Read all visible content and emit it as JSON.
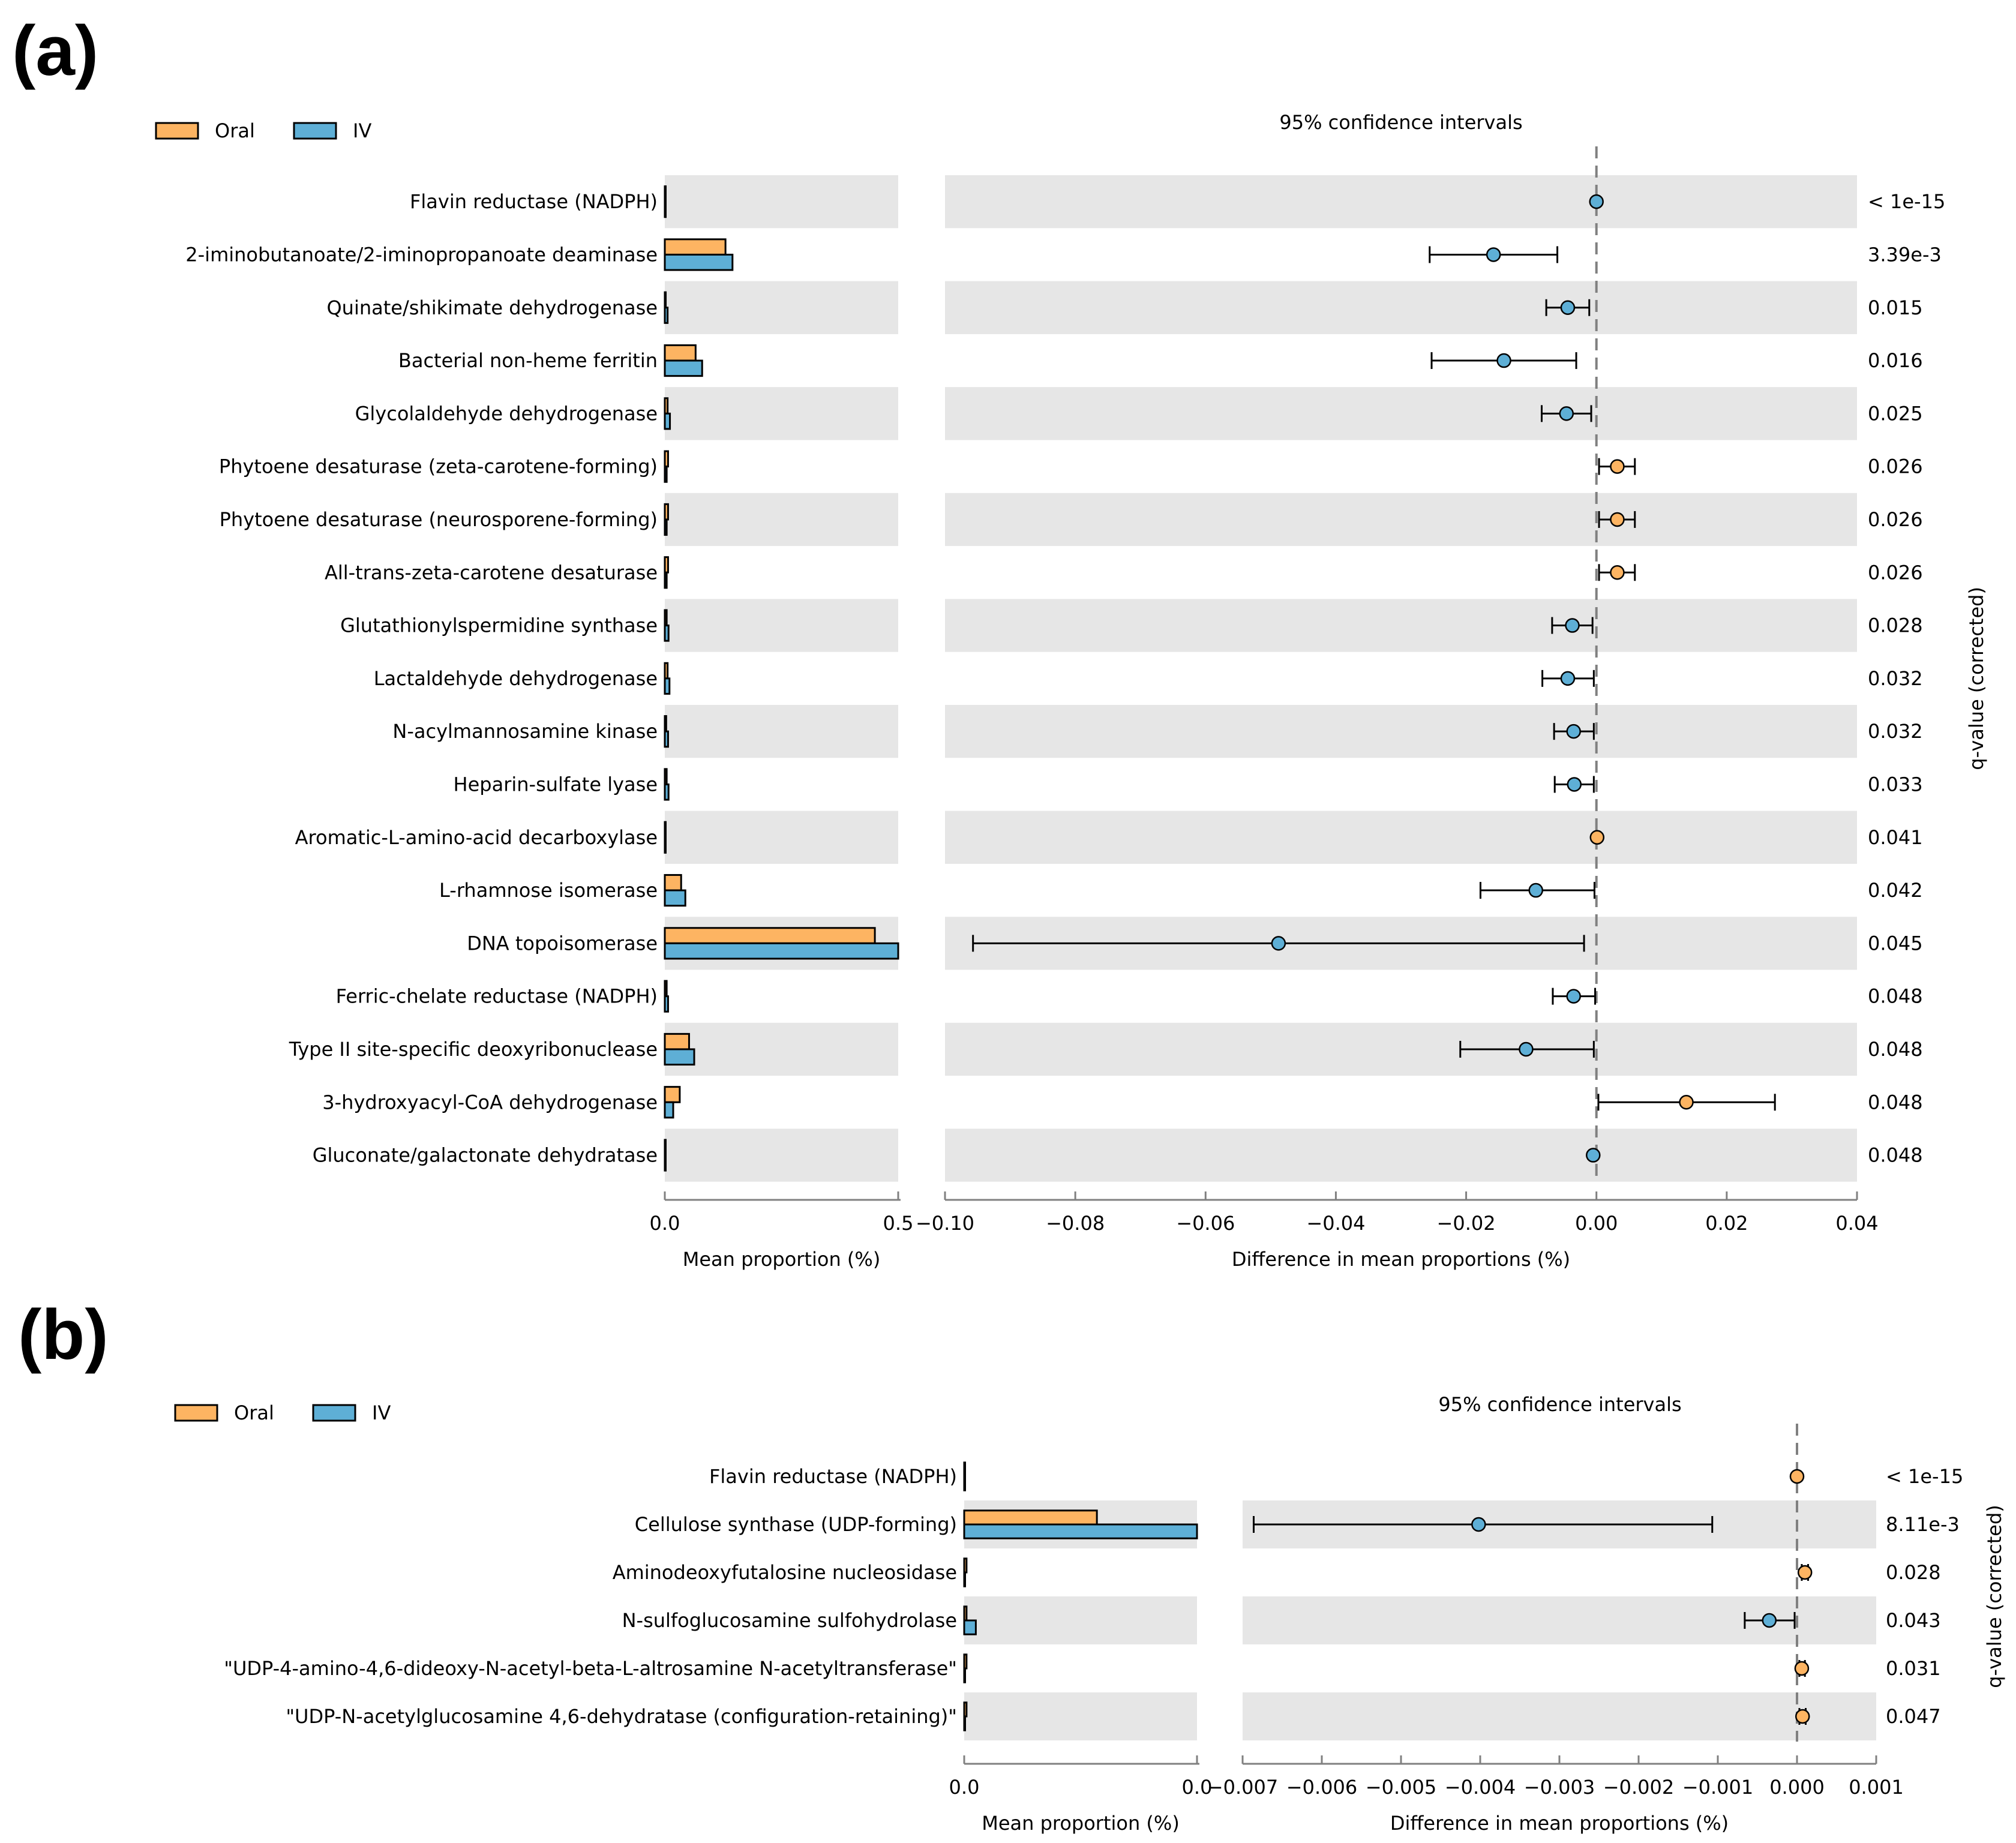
{
  "colors": {
    "oral": "#FDB462",
    "iv": "#5EAFD6",
    "band": "#e6e6e6",
    "axis": "#808080"
  },
  "chart_data": [
    {
      "panel": "(a)",
      "type": "extended-error-bar",
      "legend": [
        {
          "name": "Oral",
          "color": "#FDB462"
        },
        {
          "name": "IV",
          "color": "#5EAFD6"
        }
      ],
      "bar_axis": {
        "xlabel": "Mean proportion (%)",
        "xlim": [
          0.0,
          0.5
        ],
        "ticks": [
          0.0,
          0.5
        ],
        "tick_labels": [
          "0.0",
          "0.5"
        ]
      },
      "diff_axis": {
        "title": "95% confidence intervals",
        "xlabel": "Difference in mean proportions (%)",
        "xlim": [
          -0.1,
          0.04
        ],
        "ticks": [
          -0.1,
          -0.08,
          -0.06,
          -0.04,
          -0.02,
          0.0,
          0.02,
          0.04
        ],
        "tick_labels": [
          "−0.10",
          "−0.08",
          "−0.06",
          "−0.04",
          "−0.02",
          "0.00",
          "0.02",
          "0.04"
        ]
      },
      "ylabel_right": "q-value (corrected)",
      "rows": [
        {
          "label": "Flavin reductase (NADPH)",
          "oral": 0.0,
          "iv": 0.0,
          "diff": 0.0,
          "ci": [
            0.0,
            0.0
          ],
          "higher": "IV",
          "q": "< 1e-15"
        },
        {
          "label": "2-iminobutanoate/2-iminopropanoate deaminase",
          "oral": 0.13,
          "iv": 0.145,
          "diff": -0.0158,
          "ci": [
            -0.0256,
            -0.006
          ],
          "higher": "IV",
          "q": "3.39e-3"
        },
        {
          "label": "Quinate/shikimate dehydrogenase",
          "oral": 0.002,
          "iv": 0.006,
          "diff": -0.0044,
          "ci": [
            -0.0077,
            -0.0011
          ],
          "higher": "IV",
          "q": "0.015"
        },
        {
          "label": "Bacterial non-heme ferritin",
          "oral": 0.066,
          "iv": 0.08,
          "diff": -0.0142,
          "ci": [
            -0.0253,
            -0.0031
          ],
          "higher": "IV",
          "q": "0.016"
        },
        {
          "label": "Glycolaldehyde dehydrogenase",
          "oral": 0.006,
          "iv": 0.011,
          "diff": -0.0046,
          "ci": [
            -0.0084,
            -0.0008
          ],
          "higher": "IV",
          "q": "0.025"
        },
        {
          "label": "Phytoene desaturase (zeta-carotene-forming)",
          "oral": 0.007,
          "iv": 0.004,
          "diff": 0.0032,
          "ci": [
            0.0004,
            0.0059
          ],
          "higher": "Oral",
          "q": "0.026"
        },
        {
          "label": "Phytoene desaturase (neurosporene-forming)",
          "oral": 0.007,
          "iv": 0.004,
          "diff": 0.0032,
          "ci": [
            0.0004,
            0.0059
          ],
          "higher": "Oral",
          "q": "0.026"
        },
        {
          "label": "All-trans-zeta-carotene desaturase",
          "oral": 0.007,
          "iv": 0.004,
          "diff": 0.0032,
          "ci": [
            0.0004,
            0.0059
          ],
          "higher": "Oral",
          "q": "0.026"
        },
        {
          "label": "Glutathionylspermidine synthase",
          "oral": 0.004,
          "iv": 0.008,
          "diff": -0.0037,
          "ci": [
            -0.0068,
            -0.0006
          ],
          "higher": "IV",
          "q": "0.028"
        },
        {
          "label": "Lactaldehyde dehydrogenase",
          "oral": 0.006,
          "iv": 0.01,
          "diff": -0.0044,
          "ci": [
            -0.0083,
            -0.0004
          ],
          "higher": "IV",
          "q": "0.032"
        },
        {
          "label": "N-acylmannosamine kinase",
          "oral": 0.003,
          "iv": 0.007,
          "diff": -0.0035,
          "ci": [
            -0.0065,
            -0.0004
          ],
          "higher": "IV",
          "q": "0.032"
        },
        {
          "label": "Heparin-sulfate lyase",
          "oral": 0.004,
          "iv": 0.008,
          "diff": -0.0034,
          "ci": [
            -0.0064,
            -0.0004
          ],
          "higher": "IV",
          "q": "0.033"
        },
        {
          "label": "Aromatic-L-amino-acid decarboxylase",
          "oral": 0.001,
          "iv": 0.001,
          "diff": 0.0001,
          "ci": [
            0.0001,
            0.0001
          ],
          "higher": "Oral",
          "q": "0.041"
        },
        {
          "label": "L-rhamnose isomerase",
          "oral": 0.035,
          "iv": 0.044,
          "diff": -0.0093,
          "ci": [
            -0.0178,
            -0.0003
          ],
          "higher": "IV",
          "q": "0.042"
        },
        {
          "label": "DNA topoisomerase",
          "oral": 0.45,
          "iv": 0.5,
          "diff": -0.0488,
          "ci": [
            -0.0957,
            -0.0019
          ],
          "higher": "IV",
          "q": "0.045"
        },
        {
          "label": "Ferric-chelate reductase (NADPH)",
          "oral": 0.004,
          "iv": 0.007,
          "diff": -0.0035,
          "ci": [
            -0.0067,
            -0.0002
          ],
          "higher": "IV",
          "q": "0.048"
        },
        {
          "label": "Type II site-specific deoxyribonuclease",
          "oral": 0.052,
          "iv": 0.063,
          "diff": -0.0108,
          "ci": [
            -0.0209,
            -0.0004
          ],
          "higher": "IV",
          "q": "0.048"
        },
        {
          "label": "3-hydroxyacyl-CoA dehydrogenase",
          "oral": 0.032,
          "iv": 0.018,
          "diff": 0.0138,
          "ci": [
            0.0003,
            0.0274
          ],
          "higher": "Oral",
          "q": "0.048"
        },
        {
          "label": "Gluconate/galactonate dehydratase",
          "oral": 0.001,
          "iv": 0.001,
          "diff": -0.0005,
          "ci": [
            -0.0005,
            -0.0005
          ],
          "higher": "IV",
          "q": "0.048"
        }
      ]
    },
    {
      "panel": "(b)",
      "type": "extended-error-bar",
      "legend": [
        {
          "name": "Oral",
          "color": "#FDB462"
        },
        {
          "name": "IV",
          "color": "#5EAFD6"
        }
      ],
      "bar_axis": {
        "xlabel": "Mean proportion (%)",
        "xlim": [
          0.0,
          0.01
        ],
        "ticks": [
          0.0,
          0.01
        ],
        "tick_labels": [
          "0.0",
          "0.0"
        ]
      },
      "diff_axis": {
        "title": "95% confidence intervals",
        "xlabel": "Difference in mean proportions (%)",
        "xlim": [
          -0.007,
          0.001
        ],
        "ticks": [
          -0.007,
          -0.006,
          -0.005,
          -0.004,
          -0.003,
          -0.002,
          -0.001,
          0.0,
          0.001
        ],
        "tick_labels": [
          "−0.007",
          "−0.006",
          "−0.005",
          "−0.004",
          "−0.003",
          "−0.002",
          "−0.001",
          "0.000",
          "0.001"
        ]
      },
      "ylabel_right": "q-value (corrected)",
      "rows": [
        {
          "label": "Flavin reductase (NADPH)",
          "oral": 0.0,
          "iv": 0.0,
          "diff": 0.0,
          "ci": [
            0.0,
            0.0
          ],
          "higher": "Oral",
          "q": "< 1e-15"
        },
        {
          "label": "Cellulose synthase (UDP-forming)",
          "oral": 0.0057,
          "iv": 0.01,
          "diff": -0.00402,
          "ci": [
            -0.00686,
            -0.00107
          ],
          "higher": "IV",
          "q": "8.11e-3"
        },
        {
          "label": "Aminodeoxyfutalosine nucleosidase",
          "oral": 0.0001,
          "iv": 0.0,
          "diff": 0.0001,
          "ci": [
            6e-05,
            0.00014
          ],
          "higher": "Oral",
          "q": "0.028"
        },
        {
          "label": "N-sulfoglucosamine sulfohydrolase",
          "oral": 0.0001,
          "iv": 0.0005,
          "diff": -0.00035,
          "ci": [
            -0.00066,
            -3e-05
          ],
          "higher": "IV",
          "q": "0.043"
        },
        {
          "label": "\"UDP-4-amino-4,6-dideoxy-N-acetyl-beta-L-altrosamine N-acetyltransferase\"",
          "oral": 0.0001,
          "iv": 0.0,
          "diff": 6e-05,
          "ci": [
            3e-05,
            0.0001
          ],
          "higher": "Oral",
          "q": "0.031"
        },
        {
          "label": "\"UDP-N-acetylglucosamine 4,6-dehydratase (configuration-retaining)\"",
          "oral": 0.0001,
          "iv": 0.0,
          "diff": 7e-05,
          "ci": [
            3e-05,
            0.00011
          ],
          "higher": "Oral",
          "q": "0.047"
        }
      ]
    }
  ]
}
